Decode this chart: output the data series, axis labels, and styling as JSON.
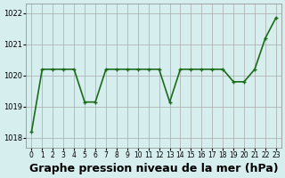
{
  "x": [
    0,
    1,
    2,
    3,
    4,
    5,
    6,
    7,
    8,
    9,
    10,
    11,
    12,
    13,
    14,
    15,
    16,
    17,
    18,
    19,
    20,
    21,
    22,
    23
  ],
  "y": [
    1018.2,
    1020.2,
    1020.2,
    1020.2,
    1020.2,
    1019.15,
    1019.15,
    1020.2,
    1020.2,
    1020.2,
    1020.2,
    1020.2,
    1020.2,
    1019.15,
    1020.2,
    1020.2,
    1020.2,
    1020.2,
    1020.2,
    1019.8,
    1019.8,
    1020.2,
    1021.2,
    1021.85
  ],
  "line_color": "#1a6b1a",
  "marker_color": "#1a6b1a",
  "bg_color": "#d6eeee",
  "grid_color": "#aaaaaa",
  "xlabel": "Graphe pression niveau de la mer (hPa)",
  "xlabel_fontsize": 9,
  "ylim": [
    1017.7,
    1022.3
  ],
  "yticks": [
    1018,
    1019,
    1020,
    1021,
    1022
  ],
  "xtick_labels": [
    "0",
    "1",
    "2",
    "3",
    "4",
    "5",
    "6",
    "7",
    "8",
    "9",
    "10",
    "11",
    "12",
    "13",
    "14",
    "15",
    "16",
    "17",
    "18",
    "19",
    "20",
    "21",
    "22",
    "23"
  ],
  "title_color": "#1a6b1a",
  "marker_size": 3,
  "line_width": 1.2
}
